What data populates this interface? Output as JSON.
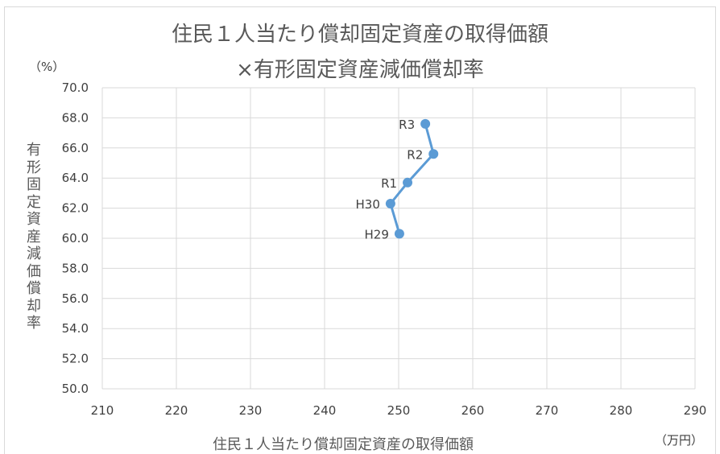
{
  "chart_data": {
    "type": "scatter",
    "title_lines": [
      "住民１人当たり償却固定資産の取得価額",
      "×有形固定資産減価償却率"
    ],
    "xlabel": "住民１人当たり償却固定資産の取得価額",
    "ylabel": "有形固定資産減価償却率",
    "x_unit": "（万円）",
    "y_unit": "（%）",
    "xlim": [
      210,
      290
    ],
    "ylim": [
      50,
      70
    ],
    "x_ticks": [
      "210",
      "220",
      "230",
      "240",
      "250",
      "260",
      "270",
      "280",
      "290"
    ],
    "y_ticks": [
      "50.0",
      "52.0",
      "54.0",
      "56.0",
      "58.0",
      "60.0",
      "62.0",
      "64.0",
      "66.0",
      "68.0",
      "70.0"
    ],
    "grid": true,
    "series_color": "#5b9bd5",
    "points": [
      {
        "label": "H29",
        "x": 250.1,
        "y": 60.3
      },
      {
        "label": "H30",
        "x": 248.9,
        "y": 62.3
      },
      {
        "label": "R1",
        "x": 251.2,
        "y": 63.7
      },
      {
        "label": "R2",
        "x": 254.7,
        "y": 65.6
      },
      {
        "label": "R3",
        "x": 253.6,
        "y": 67.6
      }
    ]
  }
}
